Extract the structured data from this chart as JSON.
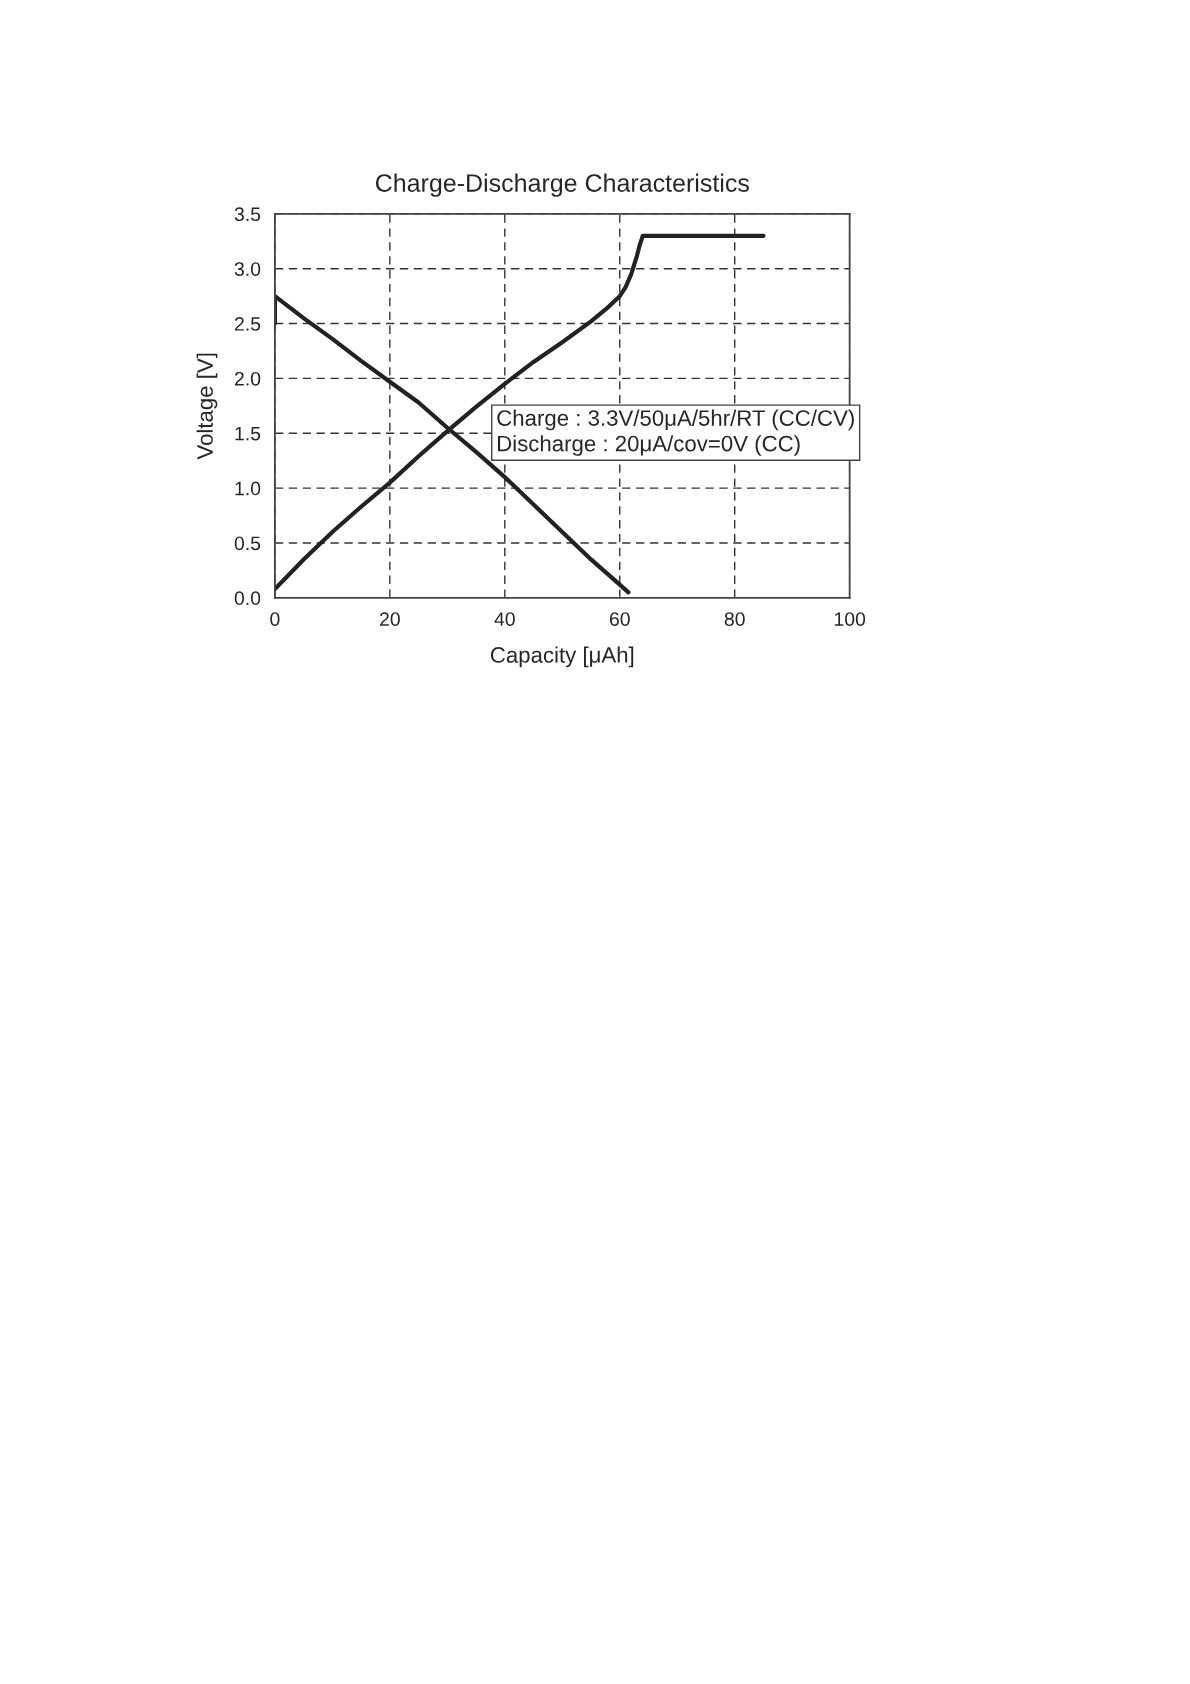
{
  "chart_data": {
    "type": "line",
    "title": "Charge-Discharge Characteristics",
    "xlabel": "Capacity [μAh]",
    "ylabel": "Voltage [V]",
    "xlim": [
      0,
      100
    ],
    "xticks": [
      0,
      20,
      40,
      60,
      80,
      100
    ],
    "ylim": [
      0,
      3.5
    ],
    "yticks": [
      {
        "value": 0,
        "label": "0.0"
      },
      {
        "value": 0.5,
        "label": "0.5"
      },
      {
        "value": 1,
        "label": "1.0"
      },
      {
        "value": 1.5,
        "label": "1.5"
      },
      {
        "value": 2,
        "label": "2.0"
      },
      {
        "value": 2.5,
        "label": "2.5"
      },
      {
        "value": 3,
        "label": "3.0"
      },
      {
        "value": 3.5,
        "label": "3.5"
      }
    ],
    "grid": true,
    "line_style": "solid",
    "marker": "none",
    "series": [
      {
        "color": "#222222",
        "x": [
          0,
          5,
          10,
          15,
          20,
          25,
          30,
          35,
          40,
          45,
          50,
          55,
          58,
          60,
          61,
          62,
          63,
          63.5,
          64,
          70,
          80,
          85
        ],
        "values": [
          0.08,
          0.35,
          0.6,
          0.83,
          1.05,
          1.29,
          1.52,
          1.74,
          1.95,
          2.15,
          2.33,
          2.52,
          2.65,
          2.75,
          2.83,
          2.95,
          3.12,
          3.22,
          3.3,
          3.3,
          3.3,
          3.3
        ]
      },
      {
        "color": "#222222",
        "x": [
          0,
          0,
          5,
          10,
          15,
          20,
          25,
          30,
          35,
          40,
          45,
          50,
          55,
          60,
          61.5
        ],
        "values": [
          2.5,
          2.75,
          2.55,
          2.36,
          2.16,
          1.97,
          1.78,
          1.55,
          1.33,
          1.1,
          0.85,
          0.6,
          0.35,
          0.12,
          0.05
        ]
      }
    ],
    "annotations": [
      {
        "text": "Charge : 3.3V/50μA/5hr/RT (CC/CV)\nDischarge : 20μA/cov=0V (CC)"
      }
    ]
  }
}
